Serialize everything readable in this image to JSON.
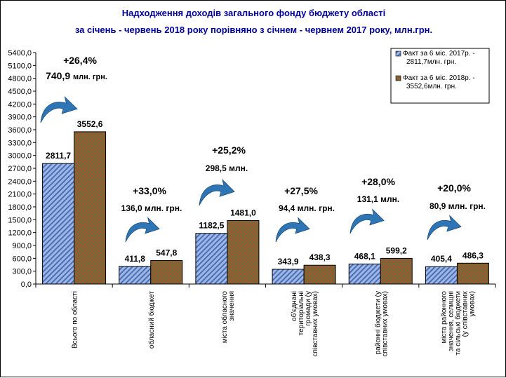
{
  "title_line1": "Надходження доходів загального фонду бюджету області",
  "title_line2": "за січень - червень 2018 року порівняно з січнем - червнем 2017 року,  млн.грн.",
  "chart_data": {
    "type": "bar",
    "categories": [
      [
        "Всього по області"
      ],
      [
        "обласний бюджет"
      ],
      [
        "міста обласного",
        "значення"
      ],
      [
        "об'єднані",
        "територіальні",
        "громади (у",
        "співставних умовах)"
      ],
      [
        "районні бюджети (у",
        "співставних умовах)"
      ],
      [
        "міста районного",
        "значення, селищні",
        "та сільські бюджети",
        "(у співставних",
        "умовах)"
      ]
    ],
    "series": [
      {
        "name": "Факт за 6 міс. 2017р. - 2811,7млн. грн.",
        "legend_lines": [
          "Факт за 6 міс. 2017р. -",
          "2811,7млн. грн."
        ],
        "values": [
          2811.7,
          411.8,
          1182.5,
          343.9,
          468.1,
          405.4
        ],
        "labels": [
          "2811,7",
          "411,8",
          "1182,5",
          "343,9",
          "468,1",
          "405,4"
        ],
        "color": "#99b3e6",
        "pattern": "diagonal-stripes"
      },
      {
        "name": "Факт за 6 міс. 2018р. - 3552,6млн. грн.",
        "legend_lines": [
          "Факт за 6 міс. 2018р. -",
          "3552,6млн. грн."
        ],
        "values": [
          3552.6,
          547.8,
          1481.0,
          438.3,
          599.2,
          486.3
        ],
        "labels": [
          "3552,6",
          "547,8",
          "1481,0",
          "438,3",
          "599,2",
          "486,3"
        ],
        "color": "#cc3333",
        "pattern": "crosshatch-green"
      }
    ],
    "growth_annotations": [
      {
        "pct": "+26,4%",
        "amount": "740,9",
        "unit": "млн. грн."
      },
      {
        "pct": "+33,0%",
        "amount": "136,0 млн. грн.",
        "unit": ""
      },
      {
        "pct": "+25,2%",
        "amount": "298,5 млн.",
        "unit": ""
      },
      {
        "pct": "+27,5%",
        "amount": "94,4 млн. грн.",
        "unit": ""
      },
      {
        "pct": "+28,0%",
        "amount": "131,1 млн.",
        "unit": ""
      },
      {
        "pct": "+20,0%",
        "amount": "80,9 млн. грн.",
        "unit": ""
      }
    ],
    "yticks": [
      "0,0",
      "300,0",
      "600,0",
      "900,0",
      "1200,0",
      "1500,0",
      "1800,0",
      "2100,0",
      "2400,0",
      "2700,0",
      "3000,0",
      "3300,0",
      "3600,0",
      "3900,0",
      "4200,0",
      "4500,0",
      "4800,0",
      "5100,0",
      "5400,0"
    ],
    "ylim": [
      0,
      5400
    ],
    "arrow_color": "#2e75b6",
    "legend_position": "top-right",
    "grid": false
  }
}
